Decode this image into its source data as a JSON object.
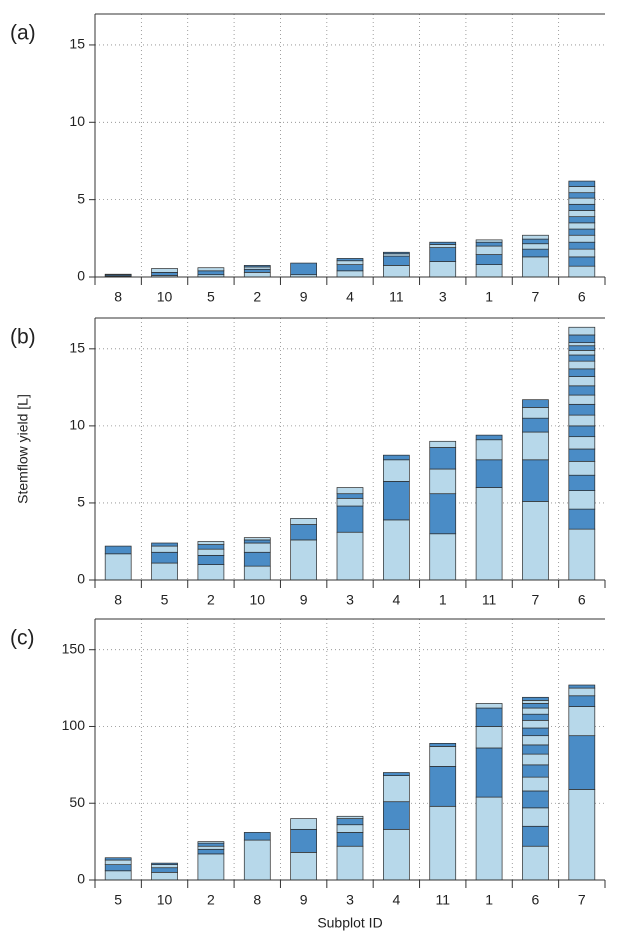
{
  "chart_data": [
    {
      "type": "bar",
      "label": "(a)",
      "categories": [
        "8",
        "10",
        "5",
        "2",
        "9",
        "4",
        "11",
        "3",
        "1",
        "7",
        "6"
      ],
      "stacks": [
        [
          0.05,
          0.08,
          0.05
        ],
        [
          0.1,
          0.2,
          0.25
        ],
        [
          0.15,
          0.25,
          0.2
        ],
        [
          0.3,
          0.2,
          0.15,
          0.1
        ],
        [
          0.15,
          0.75
        ],
        [
          0.4,
          0.4,
          0.25,
          0.15
        ],
        [
          0.75,
          0.6,
          0.15,
          0.1
        ],
        [
          1.0,
          0.9,
          0.2,
          0.15
        ],
        [
          0.8,
          0.65,
          0.55,
          0.25,
          0.15
        ],
        [
          1.3,
          0.5,
          0.35,
          0.3,
          0.25
        ],
        [
          0.7,
          0.6,
          0.5,
          0.45,
          0.45,
          0.4,
          0.4,
          0.4,
          0.4,
          0.4,
          0.4,
          0.35,
          0.4,
          0.35
        ]
      ],
      "colors": [
        "#b7d8ea",
        "#4a8cc6"
      ],
      "ylim": [
        0,
        17
      ],
      "yticks": [
        0,
        5,
        10,
        15
      ],
      "grid": true
    },
    {
      "type": "bar",
      "label": "(b)",
      "y_label": "Stemflow yield [L]",
      "categories": [
        "8",
        "5",
        "2",
        "10",
        "9",
        "3",
        "4",
        "1",
        "11",
        "7",
        "6"
      ],
      "stacks": [
        [
          1.7,
          0.5
        ],
        [
          1.1,
          0.7,
          0.4,
          0.2
        ],
        [
          1.0,
          0.6,
          0.4,
          0.3,
          0.2
        ],
        [
          0.9,
          0.9,
          0.6,
          0.2,
          0.15
        ],
        [
          2.6,
          1.0,
          0.4
        ],
        [
          3.1,
          1.7,
          0.5,
          0.3,
          0.4
        ],
        [
          3.9,
          2.5,
          1.4,
          0.3
        ],
        [
          3.0,
          2.6,
          1.6,
          1.4,
          0.4
        ],
        [
          6.0,
          1.8,
          1.3,
          0.3
        ],
        [
          5.1,
          2.7,
          1.8,
          0.9,
          0.7,
          0.5
        ],
        [
          3.3,
          1.3,
          1.2,
          1.0,
          0.9,
          0.8,
          0.8,
          0.7,
          0.7,
          0.7,
          0.6,
          0.6,
          0.6,
          0.5,
          0.5,
          0.4,
          0.3,
          0.3,
          0.2,
          0.5,
          0.5
        ]
      ],
      "colors": [
        "#b7d8ea",
        "#4a8cc6"
      ],
      "ylim": [
        0,
        17
      ],
      "yticks": [
        0,
        5,
        10,
        15
      ],
      "grid": true
    },
    {
      "type": "bar",
      "label": "(c)",
      "x_label": "Subplot ID",
      "categories": [
        "5",
        "10",
        "2",
        "8",
        "9",
        "3",
        "4",
        "11",
        "1",
        "6",
        "7"
      ],
      "stacks": [
        [
          6,
          4,
          3,
          1.5
        ],
        [
          5,
          3,
          2,
          1
        ],
        [
          17,
          3,
          2,
          2,
          1
        ],
        [
          26,
          5
        ],
        [
          18,
          15,
          7
        ],
        [
          22,
          9,
          5,
          4,
          1.5
        ],
        [
          33,
          18,
          17,
          2
        ],
        [
          48,
          26,
          13,
          2
        ],
        [
          54,
          32,
          14,
          12,
          3
        ],
        [
          22,
          13,
          12,
          11,
          9,
          8,
          7,
          6,
          6,
          5,
          5,
          4,
          4,
          3,
          2,
          2
        ],
        [
          59,
          35,
          19,
          7,
          5,
          2
        ]
      ],
      "colors": [
        "#b7d8ea",
        "#4a8cc6"
      ],
      "ylim": [
        0,
        170
      ],
      "yticks": [
        0,
        50,
        100,
        150
      ],
      "grid": true
    }
  ]
}
